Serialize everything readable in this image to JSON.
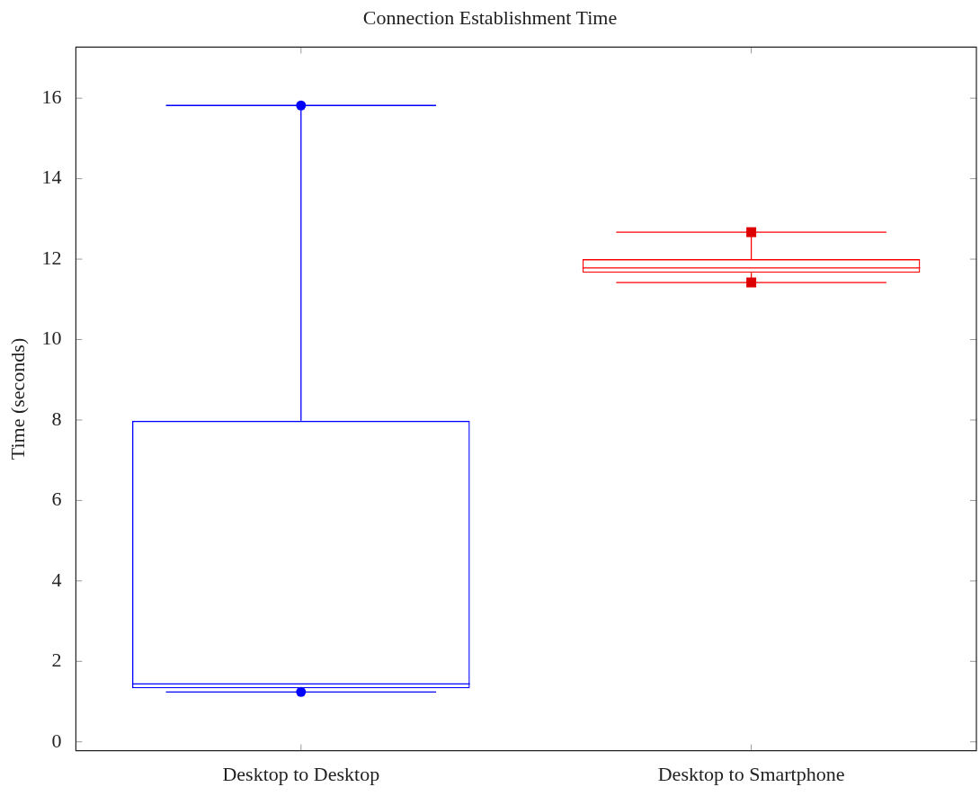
{
  "chart_data": {
    "type": "box",
    "title": "Connection Establishment Time",
    "ylabel": "Time (seconds)",
    "categories": [
      "Desktop to Desktop",
      "Desktop to Smartphone"
    ],
    "ylim": [
      -0.22,
      17.27
    ],
    "yticks": [
      0,
      2,
      4,
      6,
      8,
      10,
      12,
      14,
      16
    ],
    "series": [
      {
        "color": "#0000ff",
        "boxes": [
          {
            "low": 1.24,
            "q1": 1.33,
            "median": 1.44,
            "q3": 7.98,
            "high": 15.82
          },
          null
        ]
      },
      {
        "color": "#ff0000",
        "boxes": [
          null,
          {
            "low": 11.42,
            "q1": 11.66,
            "median": 11.78,
            "q3": 12.0,
            "high": 12.67
          }
        ]
      },
      {
        "type": "scatter",
        "color": "#0000ff",
        "marker": "circle",
        "x": [
          "Desktop to Desktop",
          "Desktop to Desktop"
        ],
        "values": [
          15.82,
          1.24
        ]
      },
      {
        "type": "scatter",
        "color": "#dd0000",
        "marker": "square",
        "x": [
          "Desktop to Smartphone",
          "Desktop to Smartphone"
        ],
        "values": [
          12.67,
          11.42
        ]
      }
    ]
  }
}
